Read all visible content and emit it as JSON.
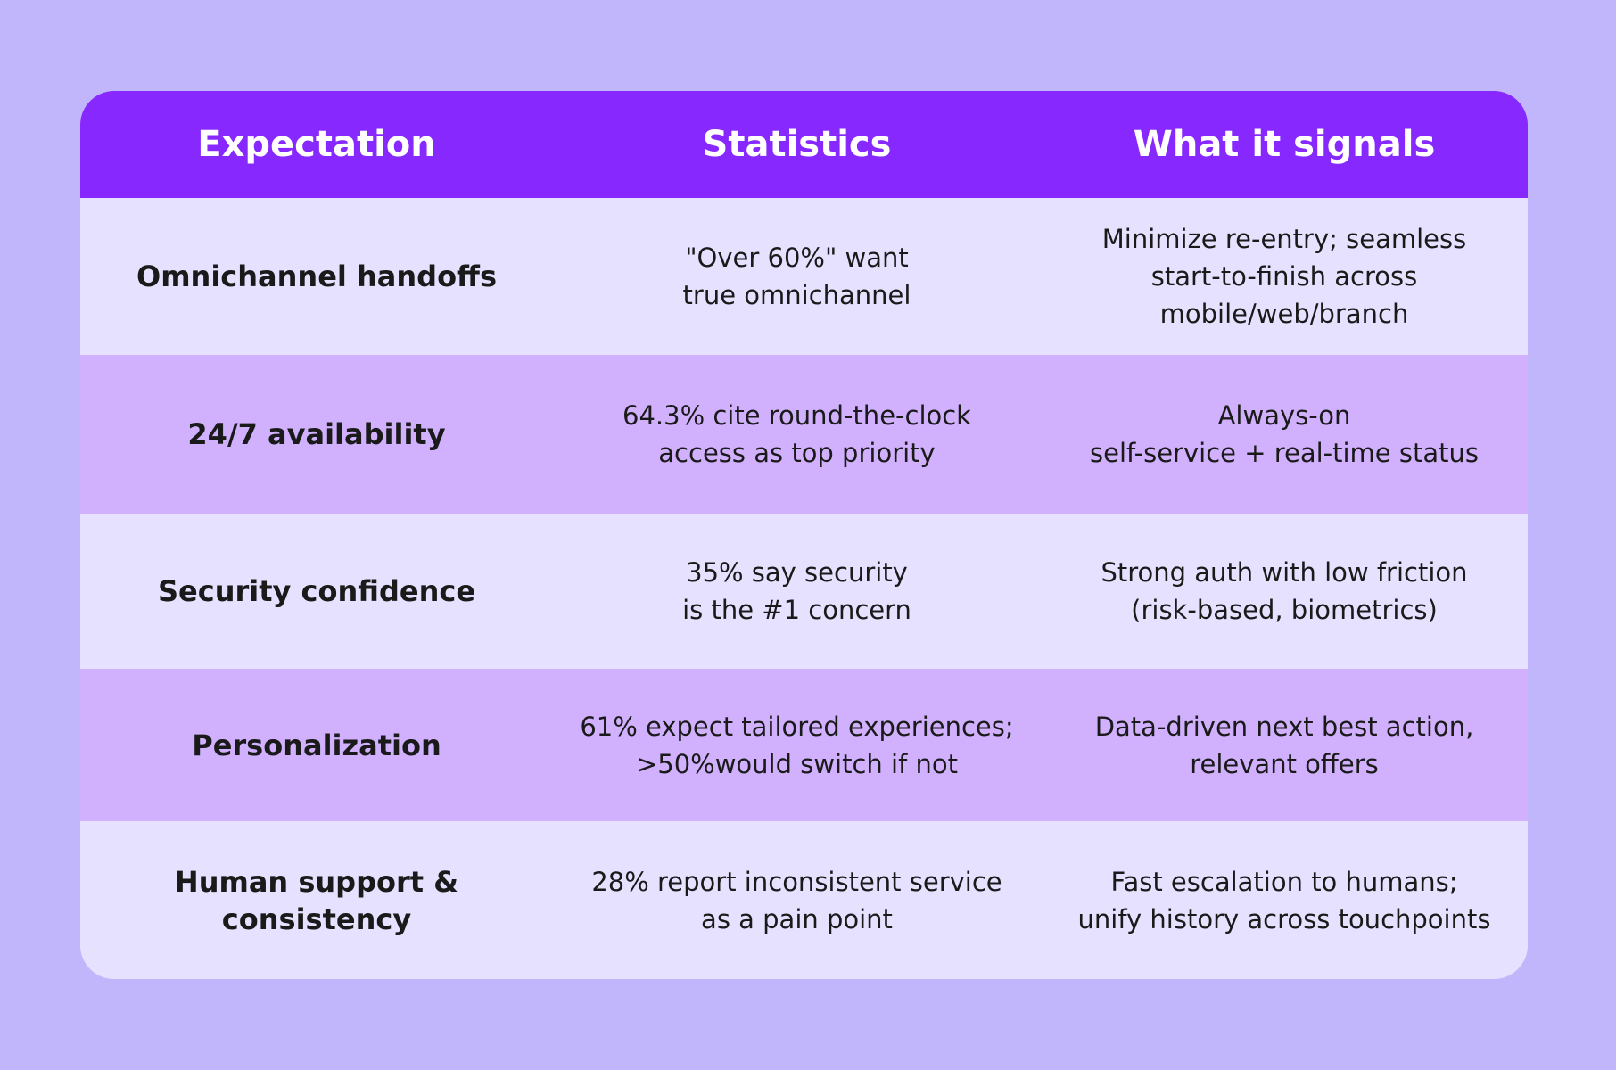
{
  "header": {
    "expectation": "Expectation",
    "statistics": "Statistics",
    "signals": "What it signals"
  },
  "rows": [
    {
      "expectation": "Omnichannel handoffs",
      "statistics": "\"Over 60%\" want\ntrue omnichannel",
      "signals": "Minimize re-entry; seamless\nstart-to-finish across\nmobile/web/branch"
    },
    {
      "expectation": "24/7 availability",
      "statistics": "64.3% cite round-the-clock\naccess as top priority",
      "signals": "Always-on\nself-service + real-time status"
    },
    {
      "expectation": "Security confidence",
      "statistics": "35% say security\nis the #1 concern",
      "signals": "Strong auth with low friction\n(risk-based, biometrics)"
    },
    {
      "expectation": "Personalization",
      "statistics": "61% expect tailored experiences;\n>50%would switch if not",
      "signals": "Data-driven next best action,\nrelevant offers"
    },
    {
      "expectation": "Human support &\nconsistency",
      "statistics": "28% report inconsistent service\nas a pain point",
      "signals": "Fast escalation to humans;\nunify history across touchpoints"
    }
  ],
  "colors": {
    "background": "#c1b5fc",
    "header": "#8628fe",
    "row_light": "#e6e1fe",
    "row_dark": "#d1b1fd",
    "text": "#1a1a1a"
  }
}
